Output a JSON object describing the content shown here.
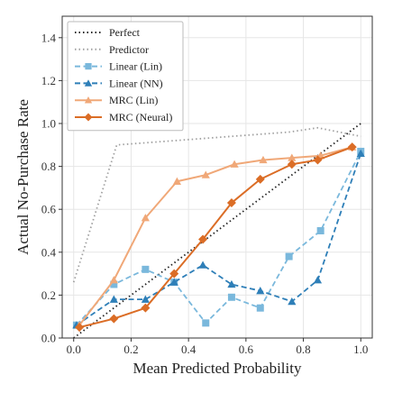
{
  "chart_data": {
    "type": "line",
    "title": "",
    "xlabel": "Mean Predicted Probability",
    "ylabel": "Actual No-Purchase Rate",
    "xlim": [
      -0.04,
      1.04
    ],
    "ylim": [
      0.0,
      1.5
    ],
    "xticks": [
      0.0,
      0.2,
      0.4,
      0.6,
      0.8,
      1.0
    ],
    "xtick_labels": [
      "0.0",
      "0.2",
      "0.4",
      "0.6",
      "0.8",
      "1.0"
    ],
    "yticks": [
      0.0,
      0.2,
      0.4,
      0.6,
      0.8,
      1.0,
      1.2,
      1.4
    ],
    "ytick_labels": [
      "0.0",
      "0.2",
      "0.4",
      "0.6",
      "0.8",
      "1.0",
      "1.2",
      "1.4"
    ],
    "grid": true,
    "legend_position": "top-left",
    "series": [
      {
        "name": "Perfect",
        "color": "#222222",
        "style": "dotted",
        "marker": "none",
        "x": [
          0.0,
          1.0
        ],
        "y": [
          0.0,
          1.0
        ]
      },
      {
        "name": "Predictor",
        "color": "#a0a0a0",
        "style": "dotted",
        "marker": "none",
        "x": [
          0.0,
          0.15,
          0.35,
          0.55,
          0.75,
          0.85,
          1.0
        ],
        "y": [
          0.26,
          0.9,
          0.92,
          0.94,
          0.96,
          0.98,
          0.94
        ]
      },
      {
        "name": "Linear (Lin)",
        "color": "#7ab8dc",
        "style": "dashed",
        "marker": "square",
        "x": [
          0.01,
          0.14,
          0.25,
          0.35,
          0.46,
          0.55,
          0.65,
          0.75,
          0.86,
          1.0
        ],
        "y": [
          0.06,
          0.25,
          0.32,
          0.26,
          0.07,
          0.19,
          0.14,
          0.38,
          0.5,
          0.87
        ]
      },
      {
        "name": "Linear (NN)",
        "color": "#2e7fb8",
        "style": "dashed",
        "marker": "triangle",
        "x": [
          0.01,
          0.14,
          0.25,
          0.35,
          0.45,
          0.55,
          0.65,
          0.76,
          0.85,
          1.0
        ],
        "y": [
          0.06,
          0.18,
          0.18,
          0.26,
          0.34,
          0.25,
          0.22,
          0.17,
          0.27,
          0.86
        ]
      },
      {
        "name": "MRC (Lin)",
        "color": "#f0a878",
        "style": "solid",
        "marker": "triangle",
        "x": [
          0.02,
          0.14,
          0.25,
          0.36,
          0.46,
          0.56,
          0.66,
          0.76,
          0.86,
          0.97
        ],
        "y": [
          0.06,
          0.27,
          0.56,
          0.73,
          0.76,
          0.81,
          0.83,
          0.84,
          0.85,
          0.89
        ]
      },
      {
        "name": "MRC (Neural)",
        "color": "#db6d26",
        "style": "solid",
        "marker": "diamond",
        "x": [
          0.02,
          0.14,
          0.25,
          0.35,
          0.45,
          0.55,
          0.65,
          0.76,
          0.85,
          0.97
        ],
        "y": [
          0.05,
          0.09,
          0.14,
          0.3,
          0.46,
          0.63,
          0.74,
          0.81,
          0.83,
          0.89
        ]
      }
    ]
  }
}
